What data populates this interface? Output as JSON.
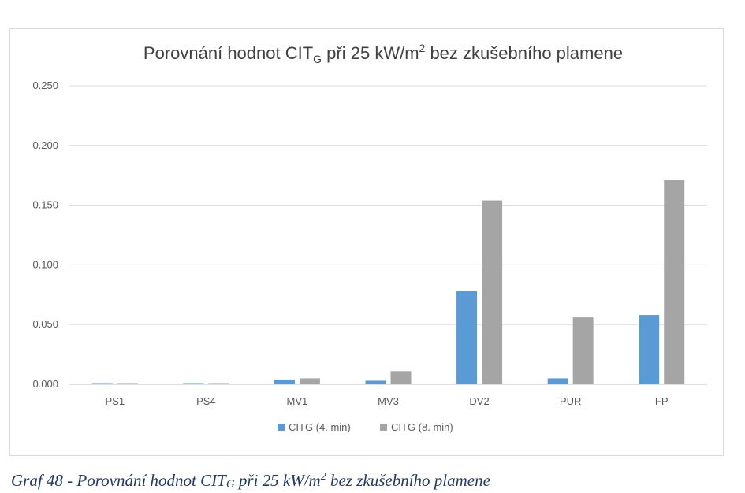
{
  "chart_data": {
    "type": "bar",
    "title": {
      "prefix": "Porovnání hodnot CIT",
      "subscript": "G",
      "middle": " při 25 kW/m",
      "superscript": "2",
      "suffix": " bez zkušebního plamene"
    },
    "categories": [
      "PS1",
      "PS4",
      "MV1",
      "MV3",
      "DV2",
      "PUR",
      "FP"
    ],
    "series": [
      {
        "name": "CITG (4. min)",
        "color": "#5b9bd5",
        "values": [
          0.001,
          0.001,
          0.004,
          0.003,
          0.078,
          0.005,
          0.058
        ]
      },
      {
        "name": "CITG (8. min)",
        "color": "#a5a5a5",
        "values": [
          0.001,
          0.001,
          0.005,
          0.011,
          0.154,
          0.056,
          0.171
        ]
      }
    ],
    "yticks": [
      "0.000",
      "0.050",
      "0.100",
      "0.150",
      "0.200",
      "0.250"
    ],
    "ylim": [
      0,
      0.25
    ],
    "grid": true,
    "legend_position": "bottom",
    "xlabel": "",
    "ylabel": ""
  },
  "caption": {
    "prefix": "Graf 48 - Porovnání hodnot CIT",
    "subscript": "G",
    "middle": " při 25 kW/m",
    "superscript": "2",
    "suffix": " bez zkušebního plamene"
  }
}
